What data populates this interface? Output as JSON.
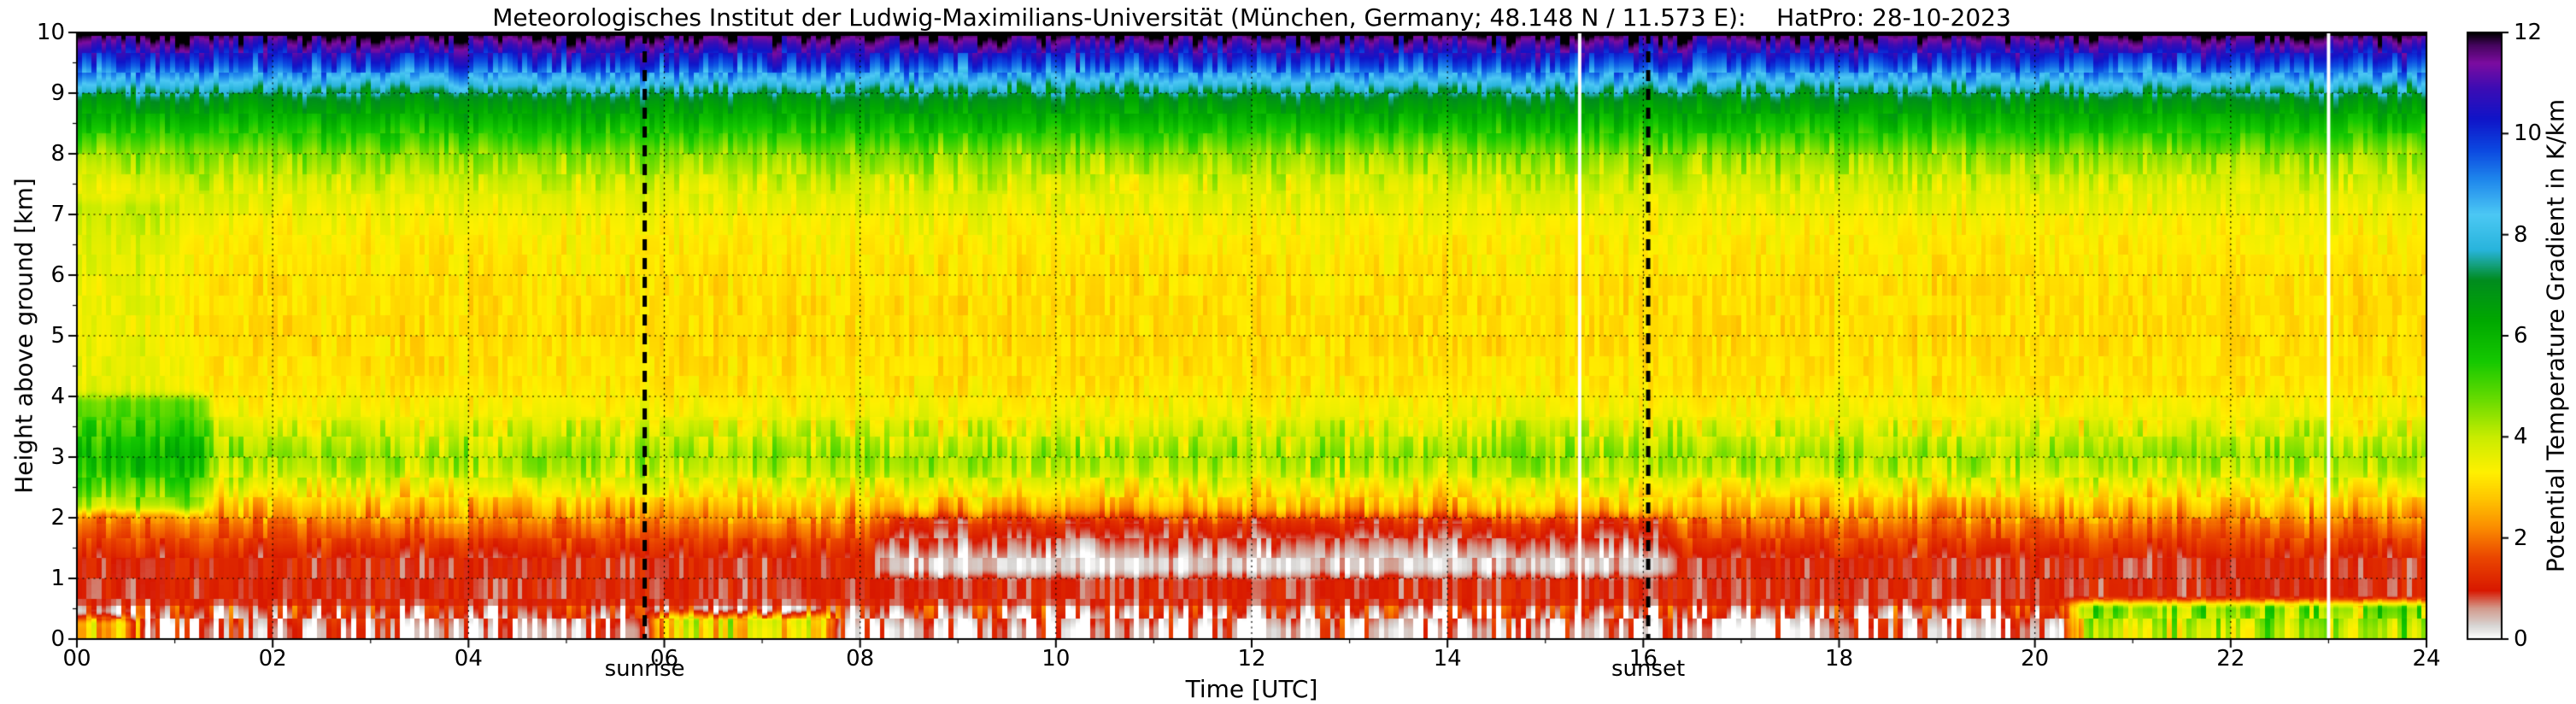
{
  "chart_data": {
    "type": "heatmap",
    "title": "Meteorologisches Institut der Ludwig-Maximilians-Universität (München, Germany; 48.148 N / 11.573 E):    HatPro: 28-10-2023",
    "instrument": "HatPro",
    "date": "28-10-2023",
    "xlabel": "Time [UTC]",
    "ylabel": "Height above ground [km]",
    "colorbar_label": "Potential Temperature Gradient in K/km",
    "x_range_utc_hours": [
      0,
      24
    ],
    "y_range_km": [
      0,
      10
    ],
    "value_range_K_per_km": [
      0,
      12
    ],
    "x_ticks": [
      0,
      2,
      4,
      6,
      8,
      10,
      12,
      14,
      16,
      18,
      20,
      22,
      24
    ],
    "x_tick_labels": [
      "00",
      "02",
      "04",
      "06",
      "08",
      "10",
      "12",
      "14",
      "16",
      "18",
      "20",
      "22",
      "24"
    ],
    "y_ticks": [
      0,
      1,
      2,
      3,
      4,
      5,
      6,
      7,
      8,
      9,
      10
    ],
    "y_tick_labels": [
      "0",
      "1",
      "2",
      "3",
      "4",
      "5",
      "6",
      "7",
      "8",
      "9",
      "10"
    ],
    "colorbar_ticks": [
      0,
      2,
      4,
      6,
      8,
      10,
      12
    ],
    "colorbar_tick_labels": [
      "0",
      "2",
      "4",
      "6",
      "8",
      "10",
      "12"
    ],
    "grid": "dotted black lines at every labeled x tick (2 h) and y tick (1 km)",
    "annotations": [
      {
        "label": "sunrise",
        "time_utc": 5.8,
        "style": "thick dashed vertical black line"
      },
      {
        "label": "sunset",
        "time_utc": 16.05,
        "style": "thick dashed vertical black line"
      }
    ],
    "missing_data_white_columns_utc": [
      15.35,
      23.0
    ],
    "colormap_stops": [
      [
        0.0,
        "#ffffff"
      ],
      [
        0.25,
        "#d8d6d4"
      ],
      [
        0.6,
        "#d29a8c"
      ],
      [
        0.95,
        "#d81800"
      ],
      [
        1.6,
        "#ea4600"
      ],
      [
        2.2,
        "#fb8d00"
      ],
      [
        2.8,
        "#ffc800"
      ],
      [
        3.3,
        "#fff000"
      ],
      [
        4.0,
        "#c8ec00"
      ],
      [
        4.7,
        "#6cdc00"
      ],
      [
        5.5,
        "#14c800"
      ],
      [
        6.3,
        "#00a800"
      ],
      [
        7.1,
        "#008c1e"
      ],
      [
        7.7,
        "#28b4dc"
      ],
      [
        8.4,
        "#4cc8f4"
      ],
      [
        9.1,
        "#1e86ec"
      ],
      [
        9.7,
        "#0b46e0"
      ],
      [
        10.3,
        "#1014c8"
      ],
      [
        10.9,
        "#3c0cb4"
      ],
      [
        11.4,
        "#7c0ca0"
      ],
      [
        11.75,
        "#46055f"
      ],
      [
        12.0,
        "#000000"
      ]
    ],
    "mean_vertical_profile": {
      "height_km": [
        0.0,
        0.15,
        0.35,
        0.55,
        1.3,
        1.6,
        1.9,
        2.2,
        2.5,
        2.8,
        3.05,
        3.35,
        3.7,
        4.2,
        5.0,
        5.8,
        6.5,
        7.0,
        7.5,
        8.0,
        8.3,
        8.6,
        8.9,
        9.05,
        9.25,
        9.45,
        9.65,
        9.8,
        9.92,
        10.0
      ],
      "gradient_K_per_km": [
        0.25,
        0.25,
        0.55,
        0.95,
        1.0,
        1.45,
        2.0,
        2.7,
        3.4,
        4.1,
        4.3,
        3.9,
        3.45,
        3.15,
        3.05,
        3.1,
        3.25,
        3.45,
        3.8,
        4.5,
        5.3,
        6.1,
        6.9,
        7.5,
        8.6,
        9.6,
        10.4,
        11.1,
        11.7,
        12.0
      ]
    },
    "time_height_anomalies": [
      {
        "t0": 0.0,
        "t1": 1.5,
        "h0": 2.1,
        "h1": 4.0,
        "delta": 1.5,
        "note": "strong stable layer (green blob) around 3 km during first hours"
      },
      {
        "t0": 0.0,
        "t1": 1.2,
        "h0": 4.0,
        "h1": 7.2,
        "delta": 0.5,
        "note": "slightly enhanced gradient aloft at day start"
      },
      {
        "t0": 8.0,
        "t1": 16.5,
        "h0": 1.05,
        "h1": 2.05,
        "delta": -0.75,
        "note": "daytime deepening of well-mixed low-gradient layer up to ~2 km"
      },
      {
        "t0": 20.2,
        "t1": 24.0,
        "h0": 0.0,
        "h1": 0.6,
        "delta": 3.8,
        "note": "surface-based stable layer (green patches) after ~20 UTC"
      },
      {
        "t0": 5.7,
        "t1": 7.9,
        "h0": 0.0,
        "h1": 0.4,
        "delta": 3.0,
        "note": "surface stability patches around sunrise"
      },
      {
        "t0": 0.0,
        "t1": 0.8,
        "h0": 0.0,
        "h1": 0.35,
        "delta": 2.6,
        "note": "surface stable patch near midnight"
      }
    ],
    "texture_noise": {
      "column_minutes": 3,
      "bands": [
        {
          "h_max": 0.55,
          "amp": 1.5
        },
        {
          "h_max": 1.9,
          "amp": 0.5
        },
        {
          "h_max": 3.6,
          "amp": 0.85
        },
        {
          "h_max": 7.4,
          "amp": 0.4
        },
        {
          "h_max": 8.95,
          "amp": 0.65
        },
        {
          "h_max": 10.0,
          "amp": 1.0
        }
      ]
    }
  }
}
